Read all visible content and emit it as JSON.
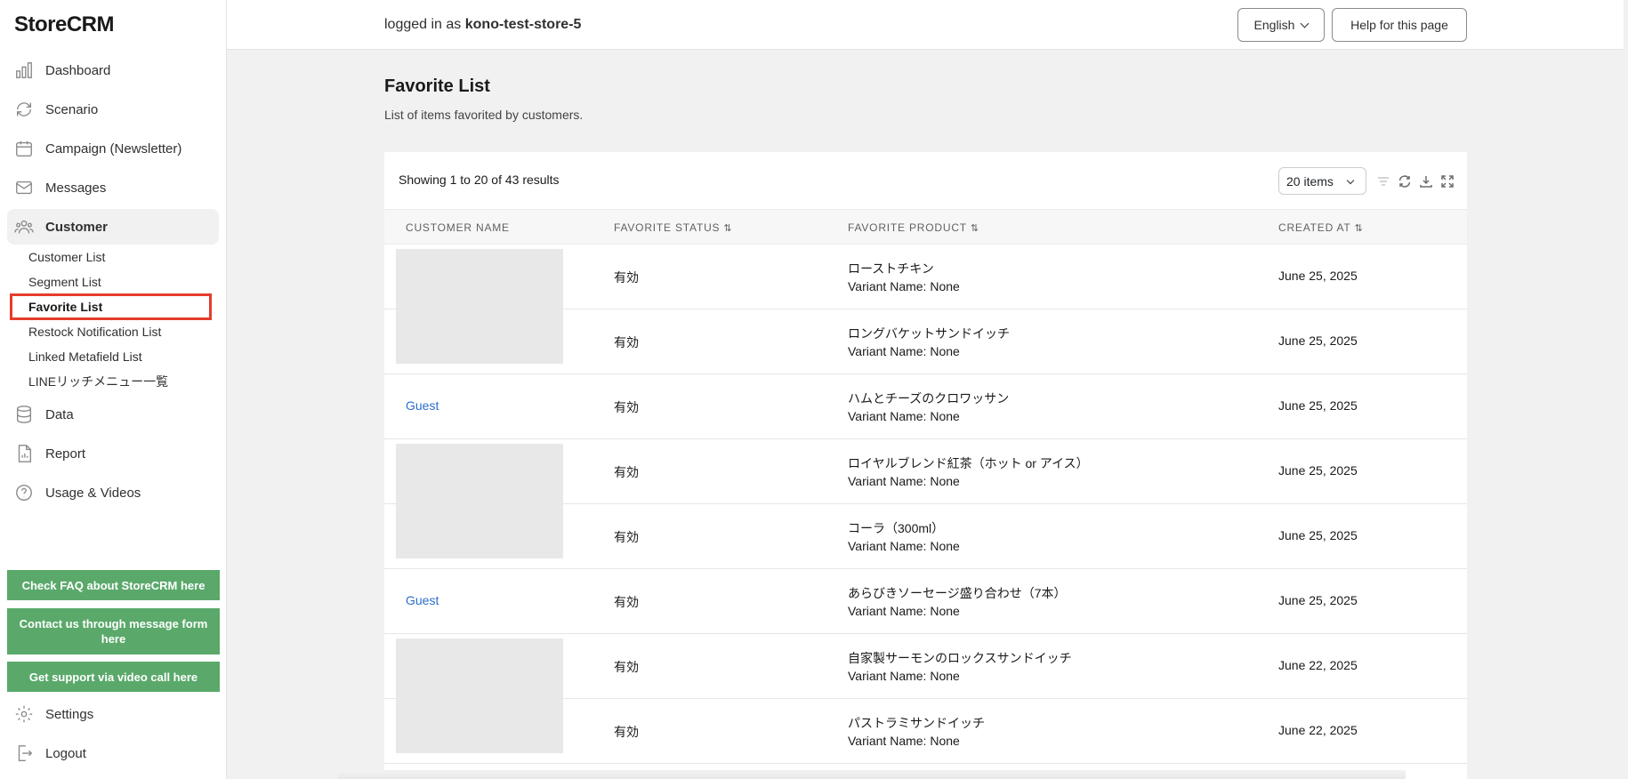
{
  "app": {
    "logo": "StoreCRM"
  },
  "sidebar": {
    "items": [
      {
        "label": "Dashboard",
        "icon": "bar-chart-icon"
      },
      {
        "label": "Scenario",
        "icon": "refresh-icon"
      },
      {
        "label": "Campaign (Newsletter)",
        "icon": "calendar-icon"
      },
      {
        "label": "Messages",
        "icon": "mail-icon"
      },
      {
        "label": "Customer",
        "icon": "users-icon"
      },
      {
        "label": "Data",
        "icon": "database-icon"
      },
      {
        "label": "Report",
        "icon": "report-icon"
      },
      {
        "label": "Usage & Videos",
        "icon": "question-icon"
      },
      {
        "label": "Settings",
        "icon": "gear-icon"
      },
      {
        "label": "Logout",
        "icon": "logout-icon"
      }
    ],
    "sub_items": [
      {
        "label": "Customer List"
      },
      {
        "label": "Segment List"
      },
      {
        "label": "Favorite List"
      },
      {
        "label": "Restock Notification List"
      },
      {
        "label": "Linked Metafield List"
      },
      {
        "label": "LINEリッチメニュー一覧"
      }
    ],
    "support_buttons": [
      {
        "label": "Check FAQ about StoreCRM here"
      },
      {
        "label": "Contact us through message form here"
      },
      {
        "label": "Get support via video call here"
      }
    ],
    "accent_color": "#5aa96b"
  },
  "header": {
    "logged_prefix": "logged in as",
    "store_name": "kono-test-store-5",
    "language": "English",
    "help_label": "Help for this page"
  },
  "page": {
    "title": "Favorite List",
    "subtitle": "List of items favorited by customers."
  },
  "table": {
    "showing": "Showing 1 to 20 of 43 results",
    "per_page": "20 items",
    "columns": [
      "Customer Name",
      "Favorite Status",
      "Favorite Product",
      "Created At"
    ],
    "rows": [
      {
        "customer": "",
        "status": "有効",
        "product": "ローストチキン",
        "variant": "Variant Name: None",
        "created": "June 25, 2025"
      },
      {
        "customer": "",
        "status": "有効",
        "product": "ロングバケットサンドイッチ",
        "variant": "Variant Name: None",
        "created": "June 25, 2025"
      },
      {
        "customer": "Guest",
        "status": "有効",
        "product": "ハムとチーズのクロワッサン",
        "variant": "Variant Name: None",
        "created": "June 25, 2025"
      },
      {
        "customer": "",
        "status": "有効",
        "product": "ロイヤルブレンド紅茶（ホット or アイス）",
        "variant": "Variant Name: None",
        "created": "June 25, 2025"
      },
      {
        "customer": "",
        "status": "有効",
        "product": "コーラ（300ml）",
        "variant": "Variant Name: None",
        "created": "June 25, 2025"
      },
      {
        "customer": "Guest",
        "status": "有効",
        "product": "あらびきソーセージ盛り合わせ（7本）",
        "variant": "Variant Name: None",
        "created": "June 25, 2025"
      },
      {
        "customer": "",
        "status": "有効",
        "product": "自家製サーモンのロックスサンドイッチ",
        "variant": "Variant Name: None",
        "created": "June 22, 2025"
      },
      {
        "customer": "",
        "status": "有効",
        "product": "パストラミサンドイッチ",
        "variant": "Variant Name: None",
        "created": "June 22, 2025"
      }
    ]
  }
}
